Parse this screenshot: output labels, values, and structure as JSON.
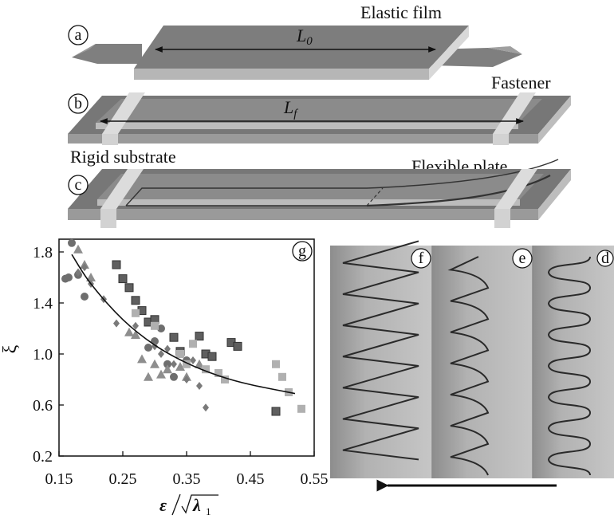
{
  "panel_labels": {
    "a": "a",
    "b": "b",
    "c": "c",
    "d": "d",
    "e": "e",
    "f": "f",
    "g": "g"
  },
  "texts": {
    "elastic_film": "Elastic film",
    "fastener": "Fastener",
    "rigid_substrate": "Rigid substrate",
    "flexible_plate": "Flexible plate",
    "l0_main": "L",
    "l0_sub": "0",
    "lf_main": "L",
    "lf_sub": "f"
  },
  "chart_data": {
    "type": "scatter",
    "title": "",
    "xlabel": "ε/√λ₁",
    "ylabel": "ξ",
    "xlim": [
      0.15,
      0.55
    ],
    "ylim": [
      0.2,
      1.9
    ],
    "xticks": [
      "0.15",
      "0.25",
      "0.35",
      "0.45",
      "0.55"
    ],
    "yticks": [
      "0.2",
      "0.6",
      "1.0",
      "1.4",
      "1.8"
    ],
    "grid": false,
    "series": [
      {
        "marker": "circle",
        "color": "#6e6e6e",
        "points": [
          [
            0.16,
            1.59
          ],
          [
            0.165,
            1.6
          ],
          [
            0.17,
            1.87
          ],
          [
            0.18,
            1.62
          ],
          [
            0.19,
            1.45
          ],
          [
            0.29,
            1.05
          ],
          [
            0.3,
            1.1
          ],
          [
            0.31,
            1.2
          ],
          [
            0.32,
            0.92
          ],
          [
            0.33,
            0.82
          ],
          [
            0.35,
            0.95
          ]
        ]
      },
      {
        "marker": "triangle",
        "color": "#8e8e8e",
        "points": [
          [
            0.18,
            1.82
          ],
          [
            0.19,
            1.7
          ],
          [
            0.2,
            1.6
          ],
          [
            0.26,
            1.17
          ],
          [
            0.27,
            1.15
          ],
          [
            0.28,
            0.96
          ],
          [
            0.29,
            0.82
          ],
          [
            0.3,
            0.92
          ],
          [
            0.31,
            0.84
          ],
          [
            0.32,
            0.88
          ],
          [
            0.34,
            0.9
          ],
          [
            0.35,
            0.82
          ],
          [
            0.37,
            0.92
          ]
        ]
      },
      {
        "marker": "diamond",
        "color": "#7a7a7a",
        "points": [
          [
            0.18,
            1.64
          ],
          [
            0.19,
            1.68
          ],
          [
            0.2,
            1.55
          ],
          [
            0.22,
            1.43
          ],
          [
            0.24,
            1.24
          ],
          [
            0.27,
            1.22
          ],
          [
            0.3,
            1.06
          ],
          [
            0.31,
            1.0
          ],
          [
            0.32,
            1.04
          ],
          [
            0.33,
            0.92
          ],
          [
            0.35,
            0.8
          ],
          [
            0.36,
            0.95
          ],
          [
            0.37,
            0.75
          ],
          [
            0.38,
            0.58
          ]
        ]
      },
      {
        "marker": "square",
        "color": "#5f5f5f",
        "points": [
          [
            0.24,
            1.7
          ],
          [
            0.25,
            1.59
          ],
          [
            0.26,
            1.52
          ],
          [
            0.27,
            1.42
          ],
          [
            0.28,
            1.34
          ],
          [
            0.29,
            1.25
          ],
          [
            0.3,
            1.27
          ],
          [
            0.33,
            1.13
          ],
          [
            0.34,
            1.02
          ],
          [
            0.37,
            1.14
          ],
          [
            0.38,
            1.0
          ],
          [
            0.39,
            0.98
          ],
          [
            0.42,
            1.09
          ],
          [
            0.43,
            1.06
          ],
          [
            0.49,
            0.55
          ]
        ]
      },
      {
        "marker": "square",
        "color": "#b0b0b0",
        "points": [
          [
            0.27,
            1.32
          ],
          [
            0.3,
            1.22
          ],
          [
            0.34,
            1.0
          ],
          [
            0.35,
            0.92
          ],
          [
            0.36,
            1.08
          ],
          [
            0.38,
            0.88
          ],
          [
            0.4,
            0.85
          ],
          [
            0.41,
            0.8
          ],
          [
            0.49,
            0.92
          ],
          [
            0.5,
            0.82
          ],
          [
            0.51,
            0.7
          ],
          [
            0.53,
            0.57
          ]
        ]
      }
    ],
    "fit_curve": {
      "style": "line",
      "color": "#111111",
      "points": [
        [
          0.17,
          1.78
        ],
        [
          0.2,
          1.55
        ],
        [
          0.25,
          1.27
        ],
        [
          0.3,
          1.07
        ],
        [
          0.35,
          0.93
        ],
        [
          0.4,
          0.83
        ],
        [
          0.45,
          0.76
        ],
        [
          0.52,
          0.69
        ]
      ]
    }
  },
  "photo_panels": {
    "arrow_direction": "left",
    "panels": [
      {
        "label": "f",
        "wave": "sawtooth",
        "peaks": 7
      },
      {
        "label": "e",
        "wave": "zigzag",
        "peaks": 7
      },
      {
        "label": "d",
        "wave": "sinusoidal",
        "peaks": 7
      }
    ]
  }
}
